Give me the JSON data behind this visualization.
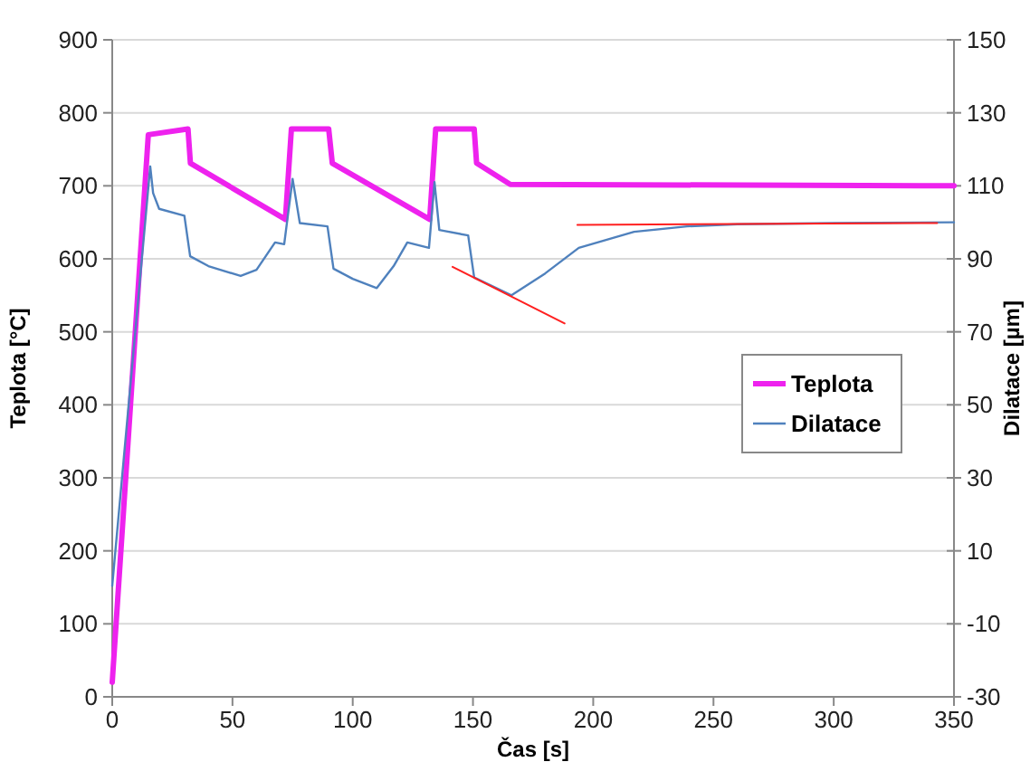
{
  "chart_data": {
    "type": "line",
    "xlabel": "Čas [s]",
    "ylabel": "Teplota [°C]",
    "y2label": "Dilatace [µm]",
    "xlim": [
      0,
      350
    ],
    "xticks": [
      0,
      50,
      100,
      150,
      200,
      250,
      300,
      350
    ],
    "ylim": [
      0,
      900
    ],
    "yticks": [
      0,
      100,
      200,
      300,
      400,
      500,
      600,
      700,
      800,
      900
    ],
    "y2lim": [
      -30,
      150
    ],
    "y2ticks": [
      -30,
      -10,
      10,
      30,
      50,
      70,
      90,
      110,
      130,
      150
    ],
    "grid": "y",
    "legend": "right",
    "series": [
      {
        "name": "Teplota",
        "color": "#ee22ee",
        "x": [
          0,
          15,
          31.5,
          32.5,
          72,
          74.5,
          90,
          91.5,
          132,
          134.5,
          150.5,
          151.5,
          165.5,
          350
        ],
        "values": [
          20,
          770,
          778,
          731,
          654,
          778,
          778,
          731,
          654,
          778,
          778,
          731,
          702,
          700
        ]
      },
      {
        "name": "Dilatace",
        "color": "#4f81bd",
        "axis": "y2",
        "x": [
          0,
          15.8,
          17,
          19.5,
          30,
          32.4,
          40,
          53.4,
          60,
          67.7,
          71.5,
          75,
          78,
          89.5,
          92,
          100,
          110,
          117,
          122.7,
          131.7,
          134,
          136,
          148,
          150.5,
          166,
          180,
          194,
          217,
          239,
          260,
          300,
          350
        ],
        "values": [
          0.4,
          115.3,
          108,
          103.7,
          101.8,
          90.7,
          88,
          85.3,
          87,
          94.5,
          94,
          111.9,
          99.8,
          98.9,
          87.3,
          84.5,
          82,
          88,
          94.5,
          93,
          111,
          97.9,
          96.4,
          84.9,
          80,
          86,
          93,
          97.4,
          98.9,
          99.5,
          99.8,
          100
        ]
      },
      {
        "type": "line",
        "color": "#ff2020",
        "axis": "y2",
        "x": [
          141.5,
          188.1
        ],
        "values": [
          87.8,
          72.3
        ]
      },
      {
        "type": "line",
        "color": "#ff2020",
        "axis": "y2",
        "x": [
          193.4,
          343
        ],
        "values": [
          99.3,
          99.8
        ]
      }
    ]
  }
}
